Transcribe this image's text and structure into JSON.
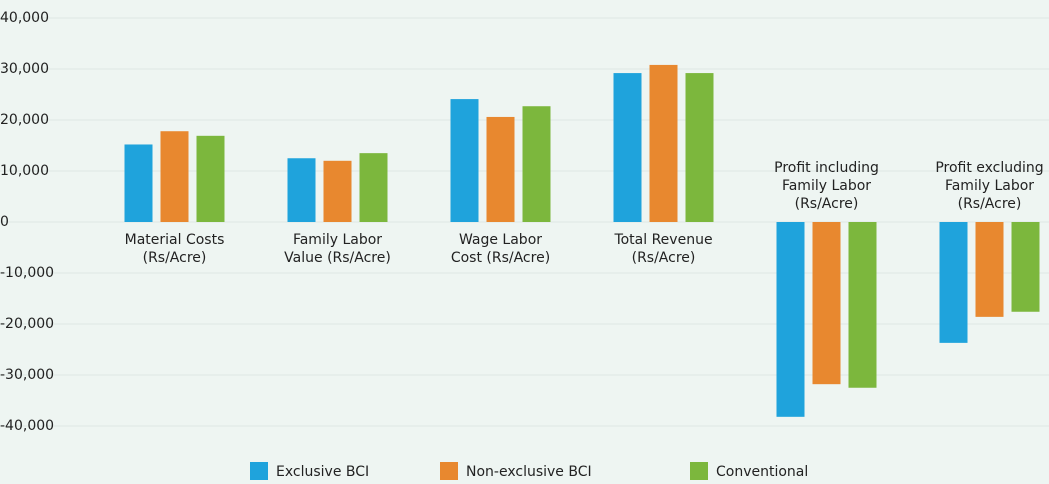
{
  "chart_data": {
    "type": "bar",
    "categories": [
      [
        "Material Costs",
        "(Rs/Acre)"
      ],
      [
        "Family Labor",
        "Value (Rs/Acre)"
      ],
      [
        "Wage Labor",
        "Cost (Rs/Acre)"
      ],
      [
        "Total Revenue",
        "(Rs/Acre)"
      ],
      [
        "Profit including",
        "Family Labor",
        "(Rs/Acre)"
      ],
      [
        "Profit excluding",
        "Family Labor",
        "(Rs/Acre)"
      ]
    ],
    "series": [
      {
        "name": "Exclusive BCI",
        "color": "#1fa3dc",
        "values": [
          15200,
          12500,
          24100,
          29200,
          -38200,
          -23700
        ]
      },
      {
        "name": "Non-exclusive BCI",
        "color": "#e8882f",
        "values": [
          17800,
          12000,
          20600,
          30800,
          -31800,
          -18600
        ]
      },
      {
        "name": "Conventional",
        "color": "#7cb73d",
        "values": [
          16900,
          13500,
          22700,
          29200,
          -32500,
          -17600
        ]
      }
    ],
    "ylim": [
      -40000,
      40000
    ],
    "yticks": [
      {
        "value": -40000,
        "label": "-40,000"
      },
      {
        "value": -30000,
        "label": "-30,000"
      },
      {
        "value": -20000,
        "label": "-20,000"
      },
      {
        "value": -10000,
        "label": "-10,000"
      },
      0,
      {
        "value": 10000,
        "label": "10,000"
      },
      {
        "value": 20000,
        "label": "20,000"
      },
      {
        "value": 30000,
        "label": "30,000"
      },
      {
        "value": 40000,
        "label": "40,000"
      }
    ],
    "grid": true
  }
}
